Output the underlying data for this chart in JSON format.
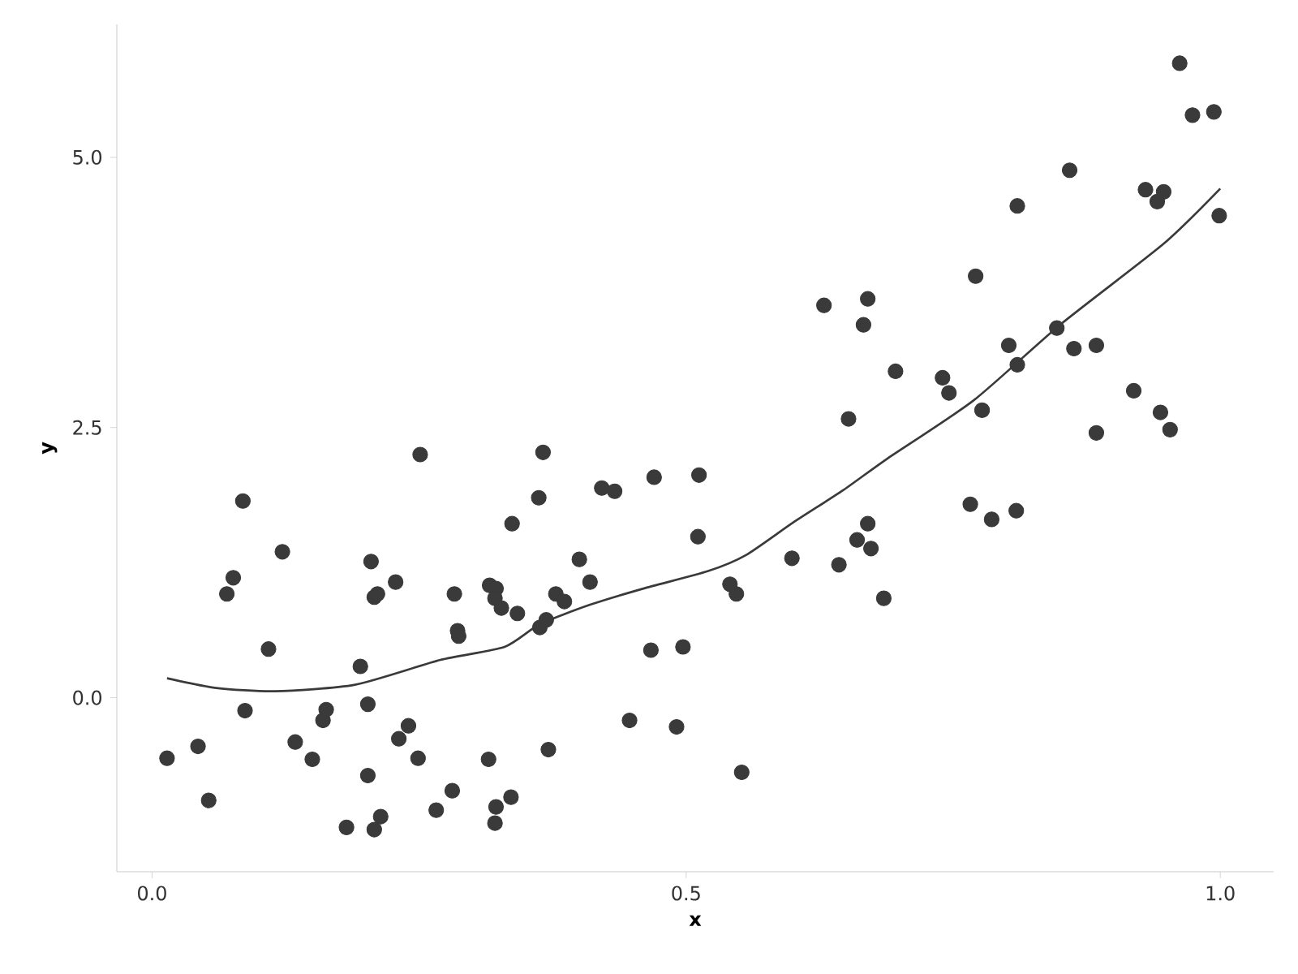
{
  "chart_data": {
    "type": "scatter",
    "xlabel": "x",
    "ylabel": "y",
    "xlim": [
      -0.033,
      1.05
    ],
    "ylim": [
      -1.61,
      6.23
    ],
    "xticks": [
      {
        "value": 0,
        "label": "0.0"
      },
      {
        "value": 0.5,
        "label": "0.5"
      },
      {
        "value": 1,
        "label": "1.0"
      }
    ],
    "yticks": [
      {
        "value": 0,
        "label": "0.0"
      },
      {
        "value": 2.5,
        "label": "2.5"
      },
      {
        "value": 5,
        "label": "5.0"
      }
    ],
    "grid": false,
    "series": [
      {
        "marker": "circle",
        "color": "#3a3a3a",
        "x": [
          0.014,
          0.043,
          0.053,
          0.07,
          0.076,
          0.085,
          0.087,
          0.109,
          0.122,
          0.134,
          0.15,
          0.16,
          0.163,
          0.182,
          0.195,
          0.202,
          0.205,
          0.202,
          0.208,
          0.211,
          0.208,
          0.214,
          0.228,
          0.231,
          0.24,
          0.249,
          0.251,
          0.266,
          0.283,
          0.281,
          0.286,
          0.287,
          0.315,
          0.316,
          0.322,
          0.321,
          0.327,
          0.322,
          0.321,
          0.337,
          0.336,
          0.342,
          0.362,
          0.366,
          0.363,
          0.369,
          0.371,
          0.378,
          0.386,
          0.4,
          0.41,
          0.421,
          0.433,
          0.447,
          0.467,
          0.47,
          0.491,
          0.497,
          0.512,
          0.511,
          0.541,
          0.547,
          0.552,
          0.599,
          0.629,
          0.643,
          0.652,
          0.66,
          0.666,
          0.67,
          0.67,
          0.673,
          0.685,
          0.696,
          0.74,
          0.746,
          0.766,
          0.771,
          0.777,
          0.786,
          0.802,
          0.809,
          0.81,
          0.81,
          0.847,
          0.859,
          0.863,
          0.884,
          0.884,
          0.919,
          0.93,
          0.941,
          0.947,
          0.944,
          0.953,
          0.962,
          0.974,
          0.994,
          0.999
        ],
        "values": [
          -0.56,
          -0.45,
          -0.95,
          0.96,
          1.11,
          1.82,
          -0.12,
          0.45,
          1.35,
          -0.41,
          -0.57,
          -0.21,
          -0.11,
          -1.2,
          0.29,
          -0.06,
          1.26,
          -0.72,
          0.93,
          0.96,
          -1.22,
          -1.1,
          1.07,
          -0.38,
          -0.26,
          -0.56,
          2.25,
          -1.04,
          0.96,
          -0.86,
          0.62,
          0.57,
          -0.57,
          1.04,
          1.01,
          0.92,
          0.83,
          -1.01,
          -1.16,
          1.61,
          -0.92,
          0.78,
          1.85,
          2.27,
          0.65,
          0.72,
          -0.48,
          0.96,
          0.89,
          1.28,
          1.07,
          1.94,
          1.91,
          -0.21,
          0.44,
          2.04,
          -0.27,
          0.47,
          2.06,
          1.49,
          1.05,
          0.96,
          -0.69,
          1.29,
          3.63,
          1.23,
          2.58,
          1.46,
          3.45,
          3.69,
          1.61,
          1.38,
          0.92,
          3.02,
          2.96,
          2.82,
          1.79,
          3.9,
          2.66,
          1.65,
          3.26,
          1.73,
          3.08,
          4.55,
          3.42,
          4.88,
          3.23,
          3.26,
          2.45,
          2.84,
          4.7,
          4.59,
          4.68,
          2.64,
          2.48,
          5.87,
          5.39,
          5.42,
          4.46
        ]
      },
      {
        "type": "line",
        "marker": "none",
        "line_style": "solid",
        "color": "#3a3a3a",
        "x": [
          0.014,
          0.06,
          0.115,
          0.19,
          0.27,
          0.33,
          0.363,
          0.41,
          0.46,
          0.52,
          0.556,
          0.6,
          0.647,
          0.688,
          0.769,
          0.85,
          0.947,
          1.0
        ],
        "values": [
          0.18,
          0.09,
          0.06,
          0.12,
          0.35,
          0.47,
          0.68,
          0.86,
          1.01,
          1.17,
          1.32,
          1.62,
          1.92,
          2.21,
          2.75,
          3.45,
          4.2,
          4.71
        ]
      }
    ]
  }
}
